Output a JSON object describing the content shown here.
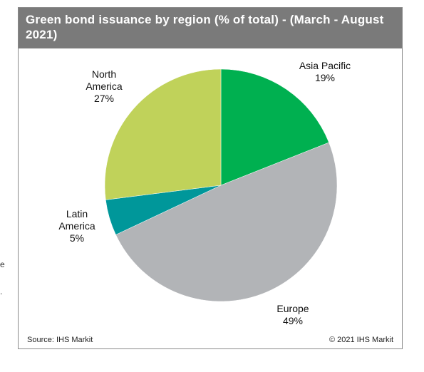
{
  "chart_data": {
    "type": "pie",
    "title": "Green bond issuance by region (% of total) - (March - August 2021)",
    "slices": [
      {
        "name": "Asia Pacific",
        "value": 19,
        "label_lines": [
          "Asia Pacific",
          "19%"
        ],
        "color": "#00b050"
      },
      {
        "name": "Europe",
        "value": 49,
        "label_lines": [
          "Europe",
          "49%"
        ],
        "color": "#b2b4b7"
      },
      {
        "name": "Latin America",
        "value": 5,
        "label_lines": [
          "Latin",
          "America",
          "5%"
        ],
        "color": "#00979a"
      },
      {
        "name": "North America",
        "value": 27,
        "label_lines": [
          "North",
          "America",
          "27%"
        ],
        "color": "#c0d25a"
      }
    ],
    "start_direction": "12 o'clock",
    "direction": "clockwise",
    "legend": "none"
  },
  "footer": {
    "source": "Source: IHS Markit",
    "copyright": "© 2021 IHS Markit"
  },
  "colors": {
    "header_bg": "#7a7a7a",
    "title_text": "#ffffff"
  }
}
